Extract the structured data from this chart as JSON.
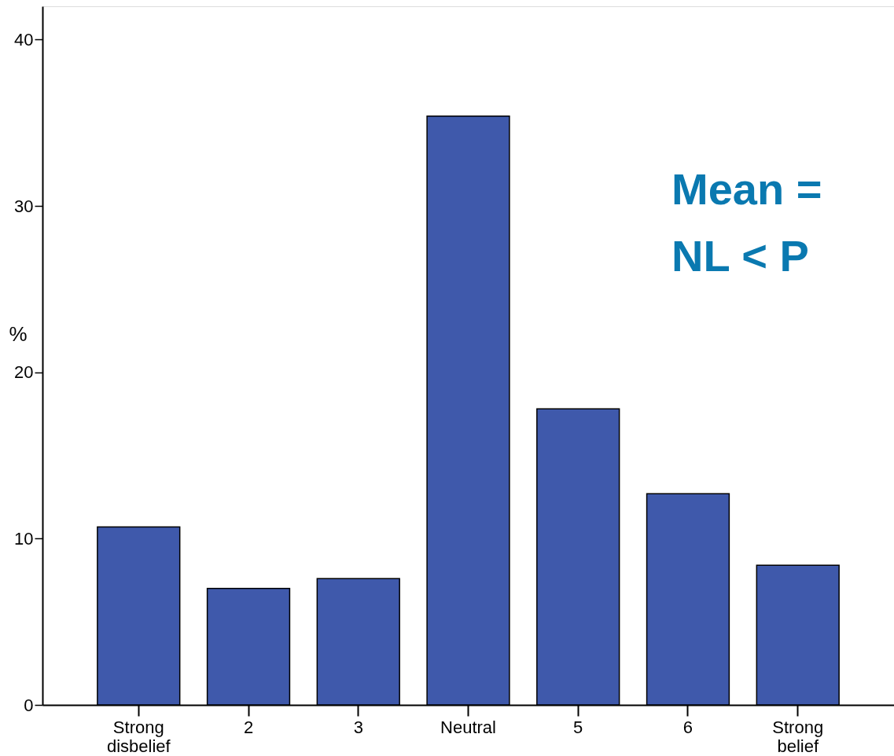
{
  "chart_data": {
    "type": "bar",
    "ylabel": "%",
    "categories": [
      "Strong disbelief",
      "2",
      "3",
      "Neutral",
      "5",
      "6",
      "Strong belief"
    ],
    "values": [
      10.7,
      7.0,
      7.6,
      35.4,
      17.8,
      12.7,
      8.4
    ],
    "color": "#3f59ab",
    "ylim": [
      0,
      42
    ],
    "yticks": [
      0,
      10,
      20,
      30,
      40
    ],
    "grid": false,
    "annotations": [
      "Mean =",
      "NL < P"
    ]
  }
}
